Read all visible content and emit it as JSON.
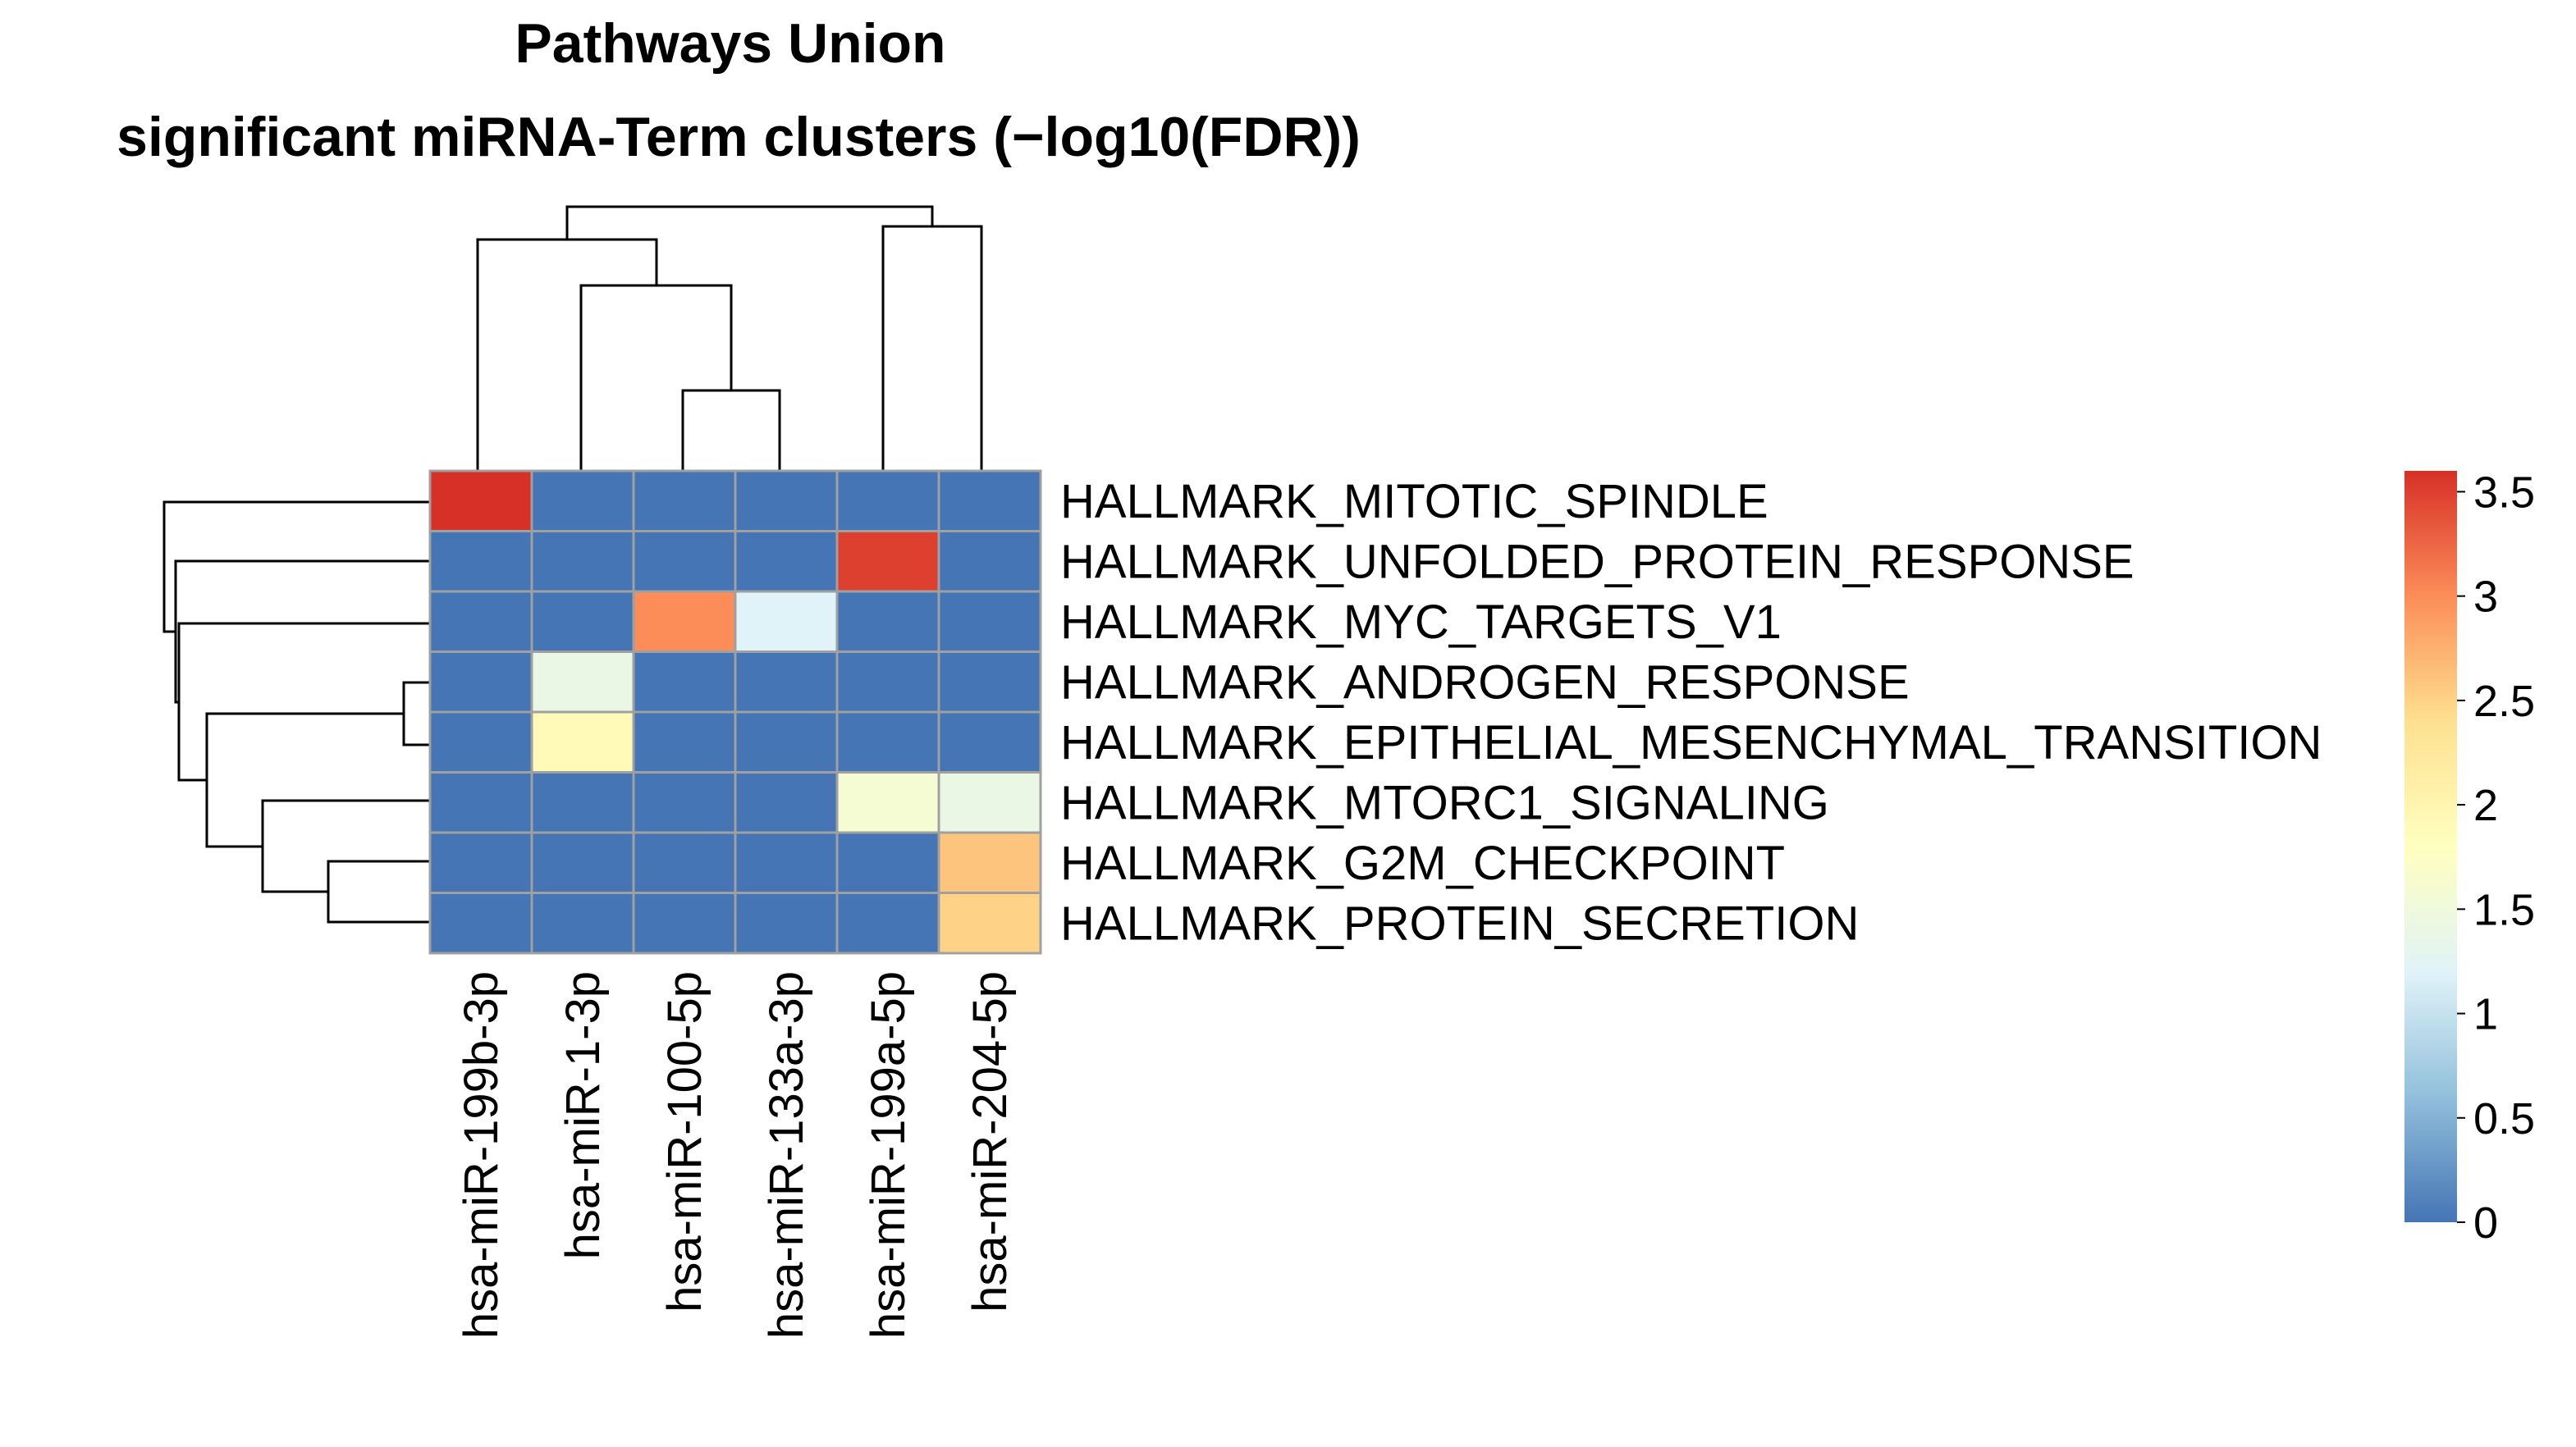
{
  "chart_data": {
    "type": "heatmap",
    "title": "Pathways Union",
    "subtitle": "significant miRNA-Term clusters (−log10(FDR))",
    "columns": [
      "hsa-miR-199b-3p",
      "hsa-miR-1-3p",
      "hsa-miR-100-5p",
      "hsa-miR-133a-3p",
      "hsa-miR-199a-5p",
      "hsa-miR-204-5p"
    ],
    "rows": [
      "HALLMARK_MITOTIC_SPINDLE",
      "HALLMARK_UNFOLDED_PROTEIN_RESPONSE",
      "HALLMARK_MYC_TARGETS_V1",
      "HALLMARK_ANDROGEN_RESPONSE",
      "HALLMARK_EPITHELIAL_MESENCHYMAL_TRANSITION",
      "HALLMARK_MTORC1_SIGNALING",
      "HALLMARK_G2M_CHECKPOINT",
      "HALLMARK_PROTEIN_SECRETION"
    ],
    "values": [
      [
        3.6,
        0,
        0,
        0,
        0,
        0
      ],
      [
        0,
        0,
        0,
        0,
        3.5,
        0
      ],
      [
        0,
        0,
        3.0,
        1.2,
        0,
        0
      ],
      [
        0,
        1.4,
        0,
        0,
        0,
        0
      ],
      [
        0,
        1.9,
        0,
        0,
        0,
        0
      ],
      [
        0,
        0,
        0,
        0,
        1.6,
        1.4
      ],
      [
        0,
        0,
        0,
        0,
        0,
        2.6
      ],
      [
        0,
        0,
        0,
        0,
        0,
        2.5
      ]
    ],
    "color_scale": {
      "min": 0,
      "max": 3.6,
      "colors": [
        "#4575b4",
        "#91bfdb",
        "#e0f3f8",
        "#ffffbf",
        "#fee090",
        "#fc8d59",
        "#d73027"
      ],
      "ticks": [
        "0",
        "0.5",
        "1",
        "1.5",
        "2",
        "2.5",
        "3",
        "3.5"
      ]
    },
    "legend_position": "right",
    "row_dendrogram": true,
    "column_dendrogram": true
  }
}
